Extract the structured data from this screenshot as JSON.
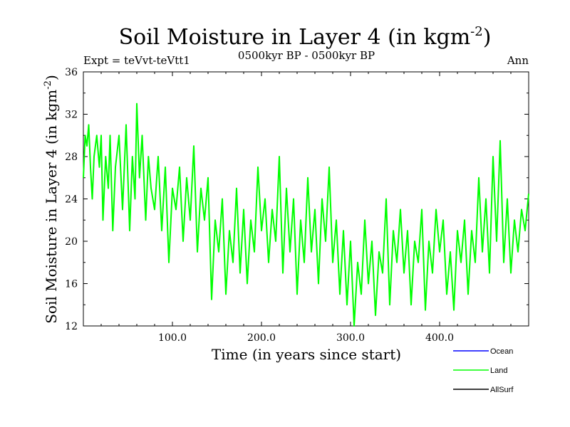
{
  "chart_data": {
    "type": "line",
    "title": "Soil Moisture in Layer 4 (in kgm",
    "title_sup": "-2",
    "title_close": ")",
    "subtitle": "0500kyr BP - 0500kyr BP",
    "left_note": "Expt = teVvt-teVtt1",
    "right_note": "Ann",
    "xlabel": "Time (in years since start)",
    "ylabel": "Soil Moisture in Layer 4 (in kgm",
    "ylabel_sup": "-2",
    "ylabel_close": ")",
    "xlim": [
      0,
      500
    ],
    "ylim": [
      12,
      36
    ],
    "x_ticks": [
      100,
      200,
      300,
      400
    ],
    "x_tick_labels": [
      "100.0",
      "200.0",
      "300.0",
      "400.0"
    ],
    "y_ticks": [
      12,
      16,
      20,
      24,
      28,
      32,
      36
    ],
    "y_tick_labels": [
      "12",
      "16",
      "20",
      "24",
      "28",
      "32",
      "36"
    ],
    "series": [
      {
        "name": "Ocean",
        "color": "#0000ff",
        "values": []
      },
      {
        "name": "Land",
        "color": "#00ff00",
        "x": [
          0,
          2,
          4,
          6,
          8,
          10,
          12,
          15,
          18,
          20,
          22,
          25,
          28,
          30,
          33,
          36,
          40,
          44,
          48,
          52,
          55,
          58,
          60,
          63,
          66,
          70,
          73,
          76,
          80,
          84,
          88,
          92,
          96,
          100,
          104,
          108,
          112,
          116,
          120,
          124,
          128,
          132,
          136,
          140,
          144,
          148,
          152,
          156,
          160,
          164,
          168,
          172,
          176,
          180,
          184,
          188,
          192,
          196,
          200,
          204,
          208,
          212,
          216,
          220,
          224,
          228,
          232,
          236,
          240,
          244,
          248,
          252,
          256,
          260,
          264,
          268,
          272,
          276,
          280,
          284,
          288,
          292,
          296,
          300,
          304,
          308,
          312,
          316,
          320,
          324,
          328,
          332,
          336,
          340,
          344,
          348,
          352,
          356,
          360,
          364,
          368,
          372,
          376,
          380,
          384,
          388,
          392,
          396,
          400,
          404,
          408,
          412,
          416,
          420,
          424,
          428,
          432,
          436,
          440,
          444,
          448,
          452,
          456,
          460,
          464,
          468,
          472,
          476,
          480,
          484,
          488,
          492,
          496,
          500
        ],
        "values": [
          26,
          30,
          29,
          31,
          27,
          24,
          28,
          30,
          27,
          30,
          22,
          28,
          25,
          30,
          21,
          27,
          30,
          23,
          31,
          21,
          28,
          24,
          33,
          26,
          30,
          22,
          28,
          25,
          23,
          28,
          21,
          27,
          18,
          25,
          23,
          27,
          20,
          26,
          22,
          29,
          19,
          25,
          22,
          26,
          14.5,
          22,
          19,
          24,
          15,
          21,
          18,
          25,
          17,
          23,
          16,
          22,
          19,
          27,
          21,
          24,
          18,
          23,
          20,
          28,
          17,
          25,
          19,
          24,
          15,
          22,
          18,
          26,
          19,
          23,
          16,
          24,
          20,
          27,
          18,
          22,
          15,
          21,
          14,
          20,
          12,
          18,
          15,
          22,
          16,
          20,
          13,
          19,
          17,
          24,
          14,
          21,
          18,
          23,
          17,
          21,
          14,
          20,
          18,
          23,
          13.5,
          20,
          17,
          23,
          19,
          22,
          15,
          19,
          13.5,
          21,
          18,
          22,
          15,
          21,
          18,
          26,
          19,
          24,
          17,
          28,
          20,
          29.5,
          18,
          24,
          17,
          22,
          19,
          23,
          21,
          24.5
        ]
      },
      {
        "name": "AllSurf",
        "color": "#000000",
        "values": []
      }
    ],
    "legend_position": "bottom-right"
  }
}
